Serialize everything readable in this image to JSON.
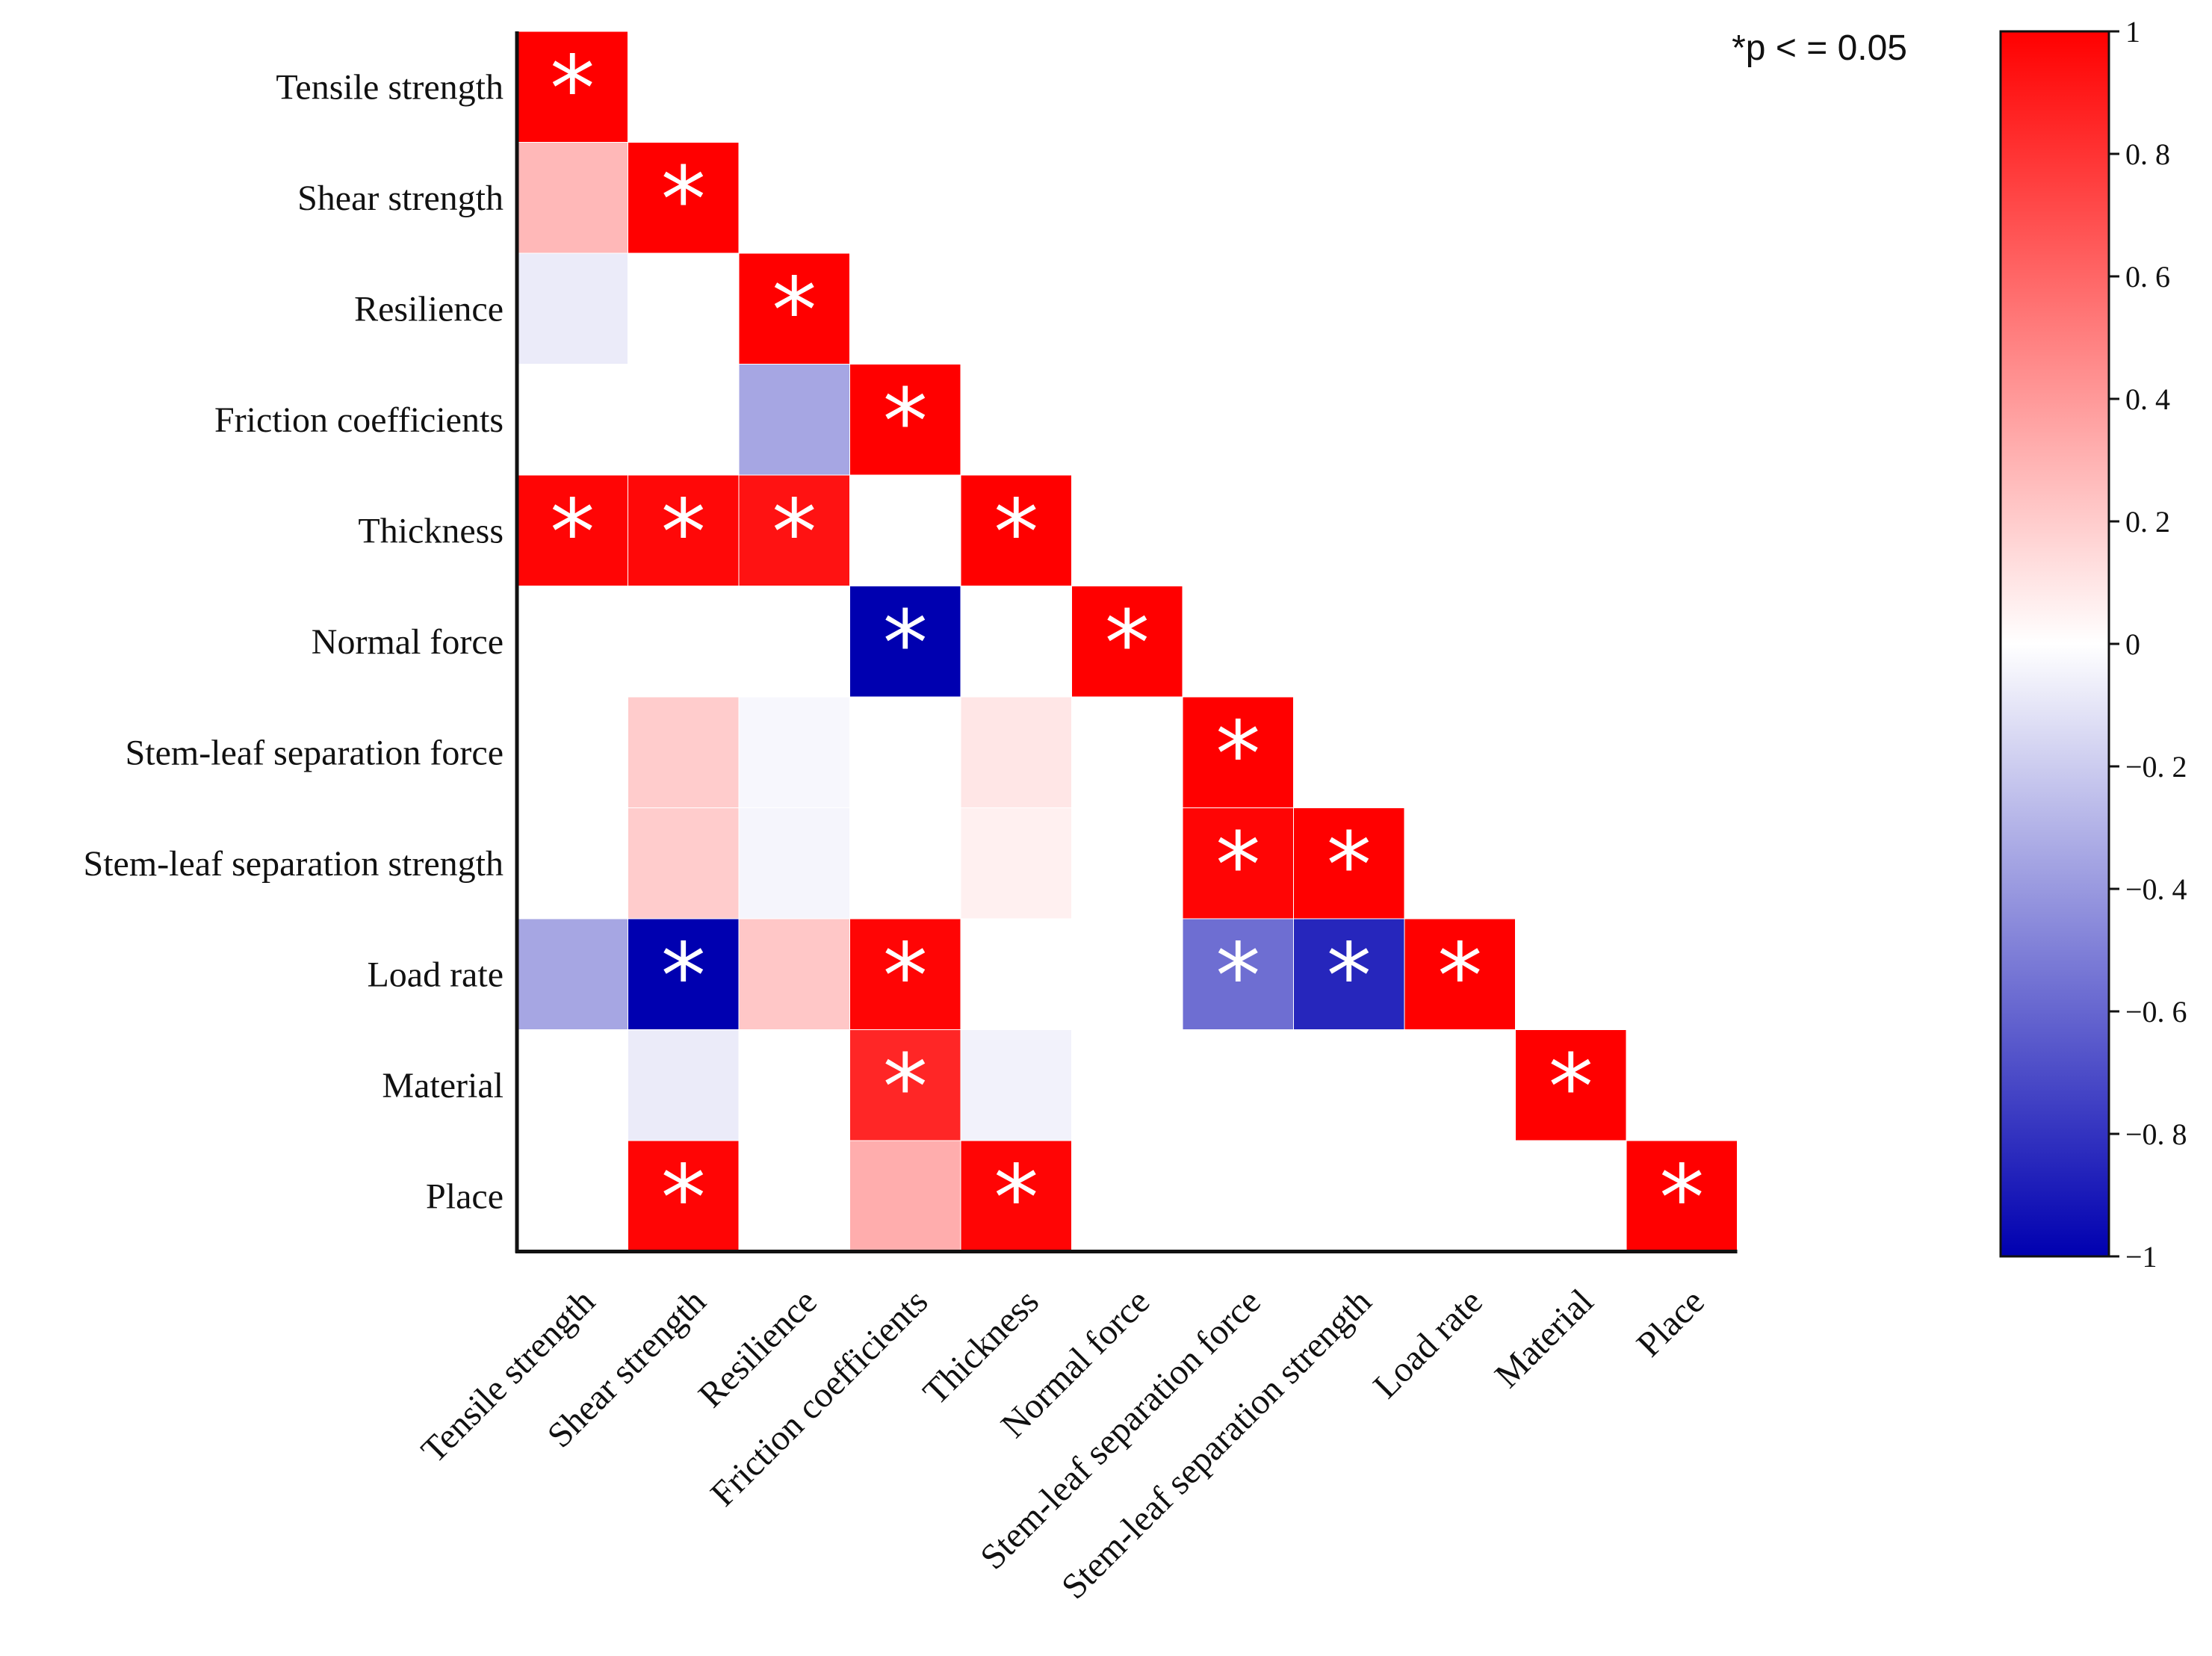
{
  "chart_data": {
    "type": "heatmap",
    "title": "",
    "subtitle": "",
    "layout": "lower-triangle correlation matrix",
    "variables": [
      "Tensile strength",
      "Shear strength",
      "Resilience",
      "Friction coefficients",
      "Thickness",
      "Normal force",
      "Stem-leaf separation force",
      "Stem-leaf separation strength",
      "Load rate",
      "Material",
      "Place"
    ],
    "matrix": [
      [
        1
      ],
      [
        0.28,
        1
      ],
      [
        -0.08,
        0.0,
        1
      ],
      [
        0.0,
        0.0,
        -0.35,
        1
      ],
      [
        0.98,
        0.97,
        0.93,
        0.0,
        1
      ],
      [
        0.0,
        0.0,
        0.0,
        -1.0,
        0.0,
        1
      ],
      [
        0.0,
        0.2,
        -0.03,
        0.0,
        0.1,
        0.0,
        1
      ],
      [
        0.0,
        0.2,
        -0.04,
        0.0,
        0.06,
        0.0,
        0.98,
        1
      ],
      [
        -0.35,
        -1.0,
        0.22,
        0.98,
        0.0,
        0.0,
        -0.57,
        -0.85,
        1
      ],
      [
        0.0,
        -0.08,
        0.0,
        0.85,
        -0.05,
        0.0,
        0.0,
        0.0,
        0.0,
        1
      ],
      [
        0.0,
        0.98,
        0.0,
        0.32,
        0.98,
        0.0,
        0.0,
        0.0,
        0.0,
        0.0,
        1
      ]
    ],
    "significant": [
      [
        true
      ],
      [
        false,
        true
      ],
      [
        false,
        false,
        true
      ],
      [
        false,
        false,
        false,
        true
      ],
      [
        true,
        true,
        true,
        false,
        true
      ],
      [
        false,
        false,
        false,
        true,
        false,
        true
      ],
      [
        false,
        false,
        false,
        false,
        false,
        false,
        true
      ],
      [
        false,
        false,
        false,
        false,
        false,
        false,
        true,
        true
      ],
      [
        false,
        true,
        false,
        true,
        false,
        false,
        true,
        true,
        true
      ],
      [
        false,
        false,
        false,
        true,
        false,
        false,
        false,
        false,
        false,
        true
      ],
      [
        false,
        true,
        false,
        false,
        true,
        false,
        false,
        false,
        false,
        false,
        true
      ]
    ],
    "significance_marker": "*",
    "significance_note": "*p < = 0.05",
    "colorbar": {
      "range": [
        -1,
        1
      ],
      "ticks": [
        "1",
        "0. 8",
        "0. 6",
        "0. 4",
        "0. 2",
        "0",
        "−0. 2",
        "−0. 4",
        "−0. 6",
        "−0. 8",
        "−1"
      ],
      "colors": {
        "low": "#0000b0",
        "mid": "#ffffff",
        "high": "#ff0000"
      }
    },
    "xlabel": "",
    "ylabel": ""
  }
}
